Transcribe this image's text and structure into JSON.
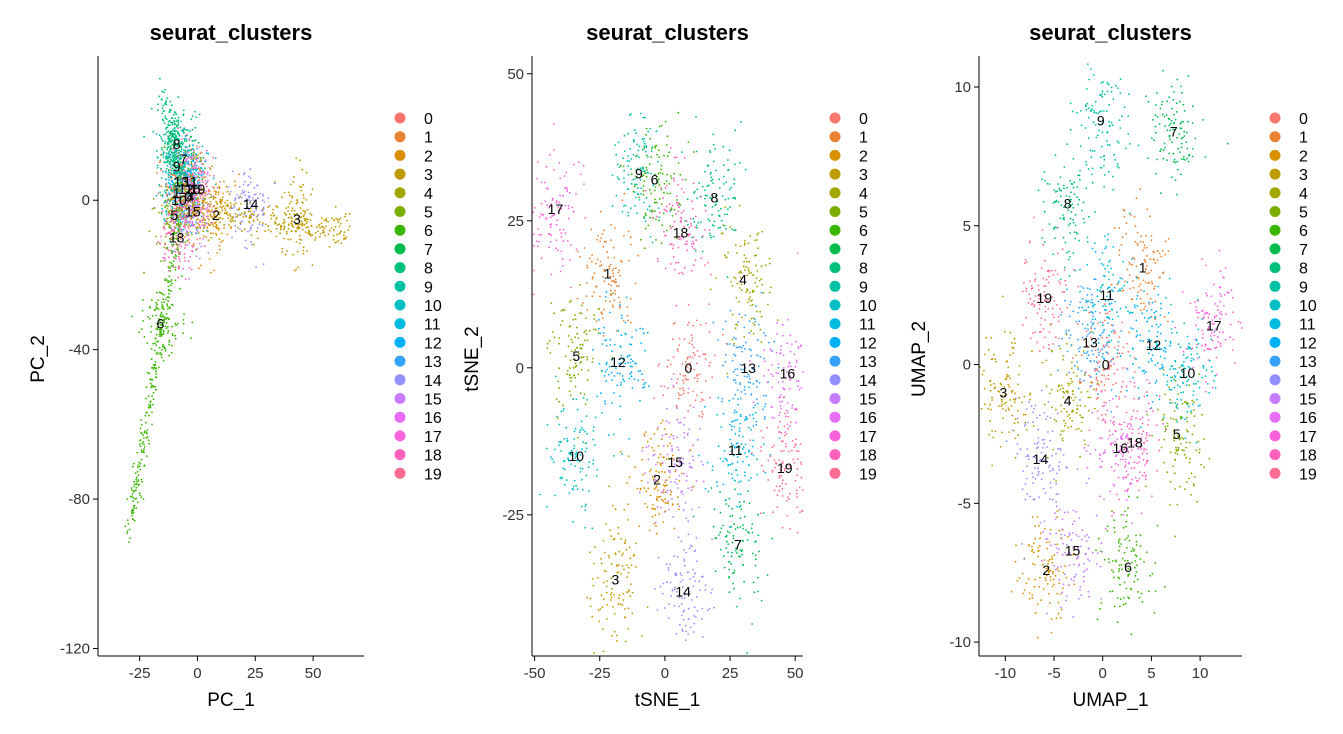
{
  "palette": [
    "#F8766D",
    "#EA8331",
    "#D89000",
    "#C09B00",
    "#A3A500",
    "#7CAE00",
    "#39B600",
    "#00BB4E",
    "#00BF7D",
    "#00C1A3",
    "#00BFC4",
    "#00BAE0",
    "#00B0F6",
    "#35A2FF",
    "#9590FF",
    "#C77CFF",
    "#E76BF3",
    "#FA62DB",
    "#FF62BC",
    "#FF6C91"
  ],
  "chart_data": [
    {
      "type": "scatter",
      "title": "seurat_clusters",
      "xlabel": "PC_1",
      "ylabel": "PC_2",
      "xlim": [
        -43,
        72
      ],
      "ylim": [
        -122,
        37
      ],
      "xticks": [
        -25,
        0,
        25,
        50
      ],
      "yticks": [
        -120,
        -80,
        -40,
        0
      ],
      "legend_title": "",
      "legend_placement": "right",
      "legend": [
        "0",
        "1",
        "2",
        "3",
        "4",
        "5",
        "6",
        "7",
        "8",
        "9",
        "10",
        "11",
        "12",
        "13",
        "14",
        "15",
        "16",
        "17",
        "18",
        "19"
      ],
      "cluster_labels": [
        {
          "label": "8",
          "x": -9,
          "y": 15
        },
        {
          "label": "9",
          "x": -9,
          "y": 9
        },
        {
          "label": "7",
          "x": -6,
          "y": 11
        },
        {
          "label": "13",
          "x": -7,
          "y": 5
        },
        {
          "label": "11",
          "x": -3,
          "y": 5
        },
        {
          "label": "1",
          "x": -9,
          "y": 2
        },
        {
          "label": "10",
          "x": -8,
          "y": 0
        },
        {
          "label": "12",
          "x": -5,
          "y": 3
        },
        {
          "label": "16",
          "x": -2,
          "y": 3
        },
        {
          "label": "19",
          "x": 0,
          "y": 3
        },
        {
          "label": "0",
          "x": -4,
          "y": 1
        },
        {
          "label": "4",
          "x": -3,
          "y": 1
        },
        {
          "label": "5",
          "x": -10,
          "y": -4
        },
        {
          "label": "15",
          "x": -2,
          "y": -3
        },
        {
          "label": "2",
          "x": 8,
          "y": -4
        },
        {
          "label": "14",
          "x": 23,
          "y": -1
        },
        {
          "label": "3",
          "x": 43,
          "y": -5
        },
        {
          "label": "18",
          "x": -9,
          "y": -10
        },
        {
          "label": "6",
          "x": -16,
          "y": -33
        }
      ]
    },
    {
      "type": "scatter",
      "title": "seurat_clusters",
      "xlabel": "tSNE_1",
      "ylabel": "tSNE_2",
      "xlim": [
        -51,
        53
      ],
      "ylim": [
        -49,
        52
      ],
      "xticks": [
        -50,
        -25,
        0,
        25,
        50
      ],
      "yticks": [
        -25,
        0,
        25,
        50
      ],
      "legend_title": "",
      "legend_placement": "right",
      "legend": [
        "0",
        "1",
        "2",
        "3",
        "4",
        "5",
        "6",
        "7",
        "8",
        "9",
        "10",
        "11",
        "12",
        "13",
        "14",
        "15",
        "16",
        "17",
        "18",
        "19"
      ],
      "cluster_labels": [
        {
          "label": "0",
          "x": 9,
          "y": 0
        },
        {
          "label": "1",
          "x": -22,
          "y": 16
        },
        {
          "label": "2",
          "x": -3,
          "y": -19
        },
        {
          "label": "3",
          "x": -19,
          "y": -36
        },
        {
          "label": "4",
          "x": 30,
          "y": 15
        },
        {
          "label": "5",
          "x": -34,
          "y": 2
        },
        {
          "label": "6",
          "x": -4,
          "y": 32
        },
        {
          "label": "7",
          "x": 28,
          "y": -30
        },
        {
          "label": "8",
          "x": 19,
          "y": 29
        },
        {
          "label": "9",
          "x": -10,
          "y": 33
        },
        {
          "label": "10",
          "x": -34,
          "y": -15
        },
        {
          "label": "11",
          "x": 27,
          "y": -14
        },
        {
          "label": "12",
          "x": -18,
          "y": 1
        },
        {
          "label": "13",
          "x": 32,
          "y": 0
        },
        {
          "label": "14",
          "x": 7,
          "y": -38
        },
        {
          "label": "15",
          "x": 4,
          "y": -16
        },
        {
          "label": "16",
          "x": 47,
          "y": -1
        },
        {
          "label": "17",
          "x": -42,
          "y": 27
        },
        {
          "label": "18",
          "x": 6,
          "y": 23
        },
        {
          "label": "19",
          "x": 46,
          "y": -17
        }
      ]
    },
    {
      "type": "scatter",
      "title": "seurat_clusters",
      "xlabel": "UMAP_1",
      "ylabel": "UMAP_2",
      "xlim": [
        -12.7,
        14.3
      ],
      "ylim": [
        -10.5,
        10.9
      ],
      "xticks": [
        -10,
        -5,
        0,
        5,
        10
      ],
      "yticks": [
        -10,
        -5,
        0,
        5,
        10
      ],
      "legend_title": "",
      "legend_placement": "right",
      "legend": [
        "0",
        "1",
        "2",
        "3",
        "4",
        "5",
        "6",
        "7",
        "8",
        "9",
        "10",
        "11",
        "12",
        "13",
        "14",
        "15",
        "16",
        "17",
        "18",
        "19"
      ],
      "cluster_labels": [
        {
          "label": "0",
          "x": 0.3,
          "y": 0
        },
        {
          "label": "1",
          "x": 4.1,
          "y": 3.5
        },
        {
          "label": "2",
          "x": -5.8,
          "y": -7.4
        },
        {
          "label": "3",
          "x": -10.2,
          "y": -1
        },
        {
          "label": "4",
          "x": -3.6,
          "y": -1.3
        },
        {
          "label": "5",
          "x": 7.6,
          "y": -2.5
        },
        {
          "label": "6",
          "x": 2.6,
          "y": -7.3
        },
        {
          "label": "7",
          "x": 7.3,
          "y": 8.4
        },
        {
          "label": "8",
          "x": -3.6,
          "y": 5.8
        },
        {
          "label": "9",
          "x": -0.2,
          "y": 8.8
        },
        {
          "label": "10",
          "x": 8.7,
          "y": -0.3
        },
        {
          "label": "11",
          "x": 0.4,
          "y": 2.5
        },
        {
          "label": "12",
          "x": 5.2,
          "y": 0.7
        },
        {
          "label": "13",
          "x": -1.3,
          "y": 0.8
        },
        {
          "label": "14",
          "x": -6.4,
          "y": -3.4
        },
        {
          "label": "15",
          "x": -3.1,
          "y": -6.7
        },
        {
          "label": "16",
          "x": 1.8,
          "y": -3
        },
        {
          "label": "17",
          "x": 11.4,
          "y": 1.4
        },
        {
          "label": "18",
          "x": 3.3,
          "y": -2.8
        },
        {
          "label": "19",
          "x": -6,
          "y": 2.4
        }
      ]
    }
  ]
}
